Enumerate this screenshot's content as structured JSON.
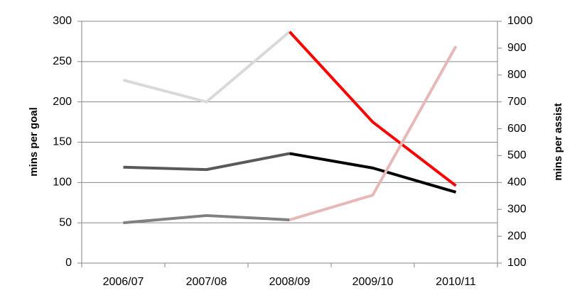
{
  "chart_data": {
    "type": "line",
    "y_label": "mins per goal",
    "y2_label": "mins per assist",
    "categories": [
      "2006/07",
      "2007/08",
      "2008/09",
      "2009/10",
      "2010/11"
    ],
    "ylim": [
      0,
      300
    ],
    "yticks": [
      0,
      50,
      100,
      150,
      200,
      250,
      300
    ],
    "y2lim": [
      100,
      1000
    ],
    "y2ticks": [
      100,
      200,
      300,
      400,
      500,
      600,
      700,
      800,
      900,
      1000
    ],
    "grid": true,
    "series": [
      {
        "color": "#d9d9d9",
        "values": [
          227,
          200,
          287,
          null,
          null
        ]
      },
      {
        "color": "#ff0000",
        "values": [
          null,
          null,
          287,
          175,
          96
        ]
      },
      {
        "color": "#595959",
        "values": [
          119,
          116,
          136,
          null,
          null
        ]
      },
      {
        "color": "#000000",
        "values": [
          null,
          null,
          136,
          118,
          88
        ]
      },
      {
        "color": "#808080",
        "axis": "y2",
        "values": [
          250,
          277,
          261,
          null,
          null
        ]
      },
      {
        "color": "#e6b9b8",
        "axis": "y2",
        "values": [
          null,
          null,
          261,
          353,
          907
        ]
      }
    ]
  }
}
